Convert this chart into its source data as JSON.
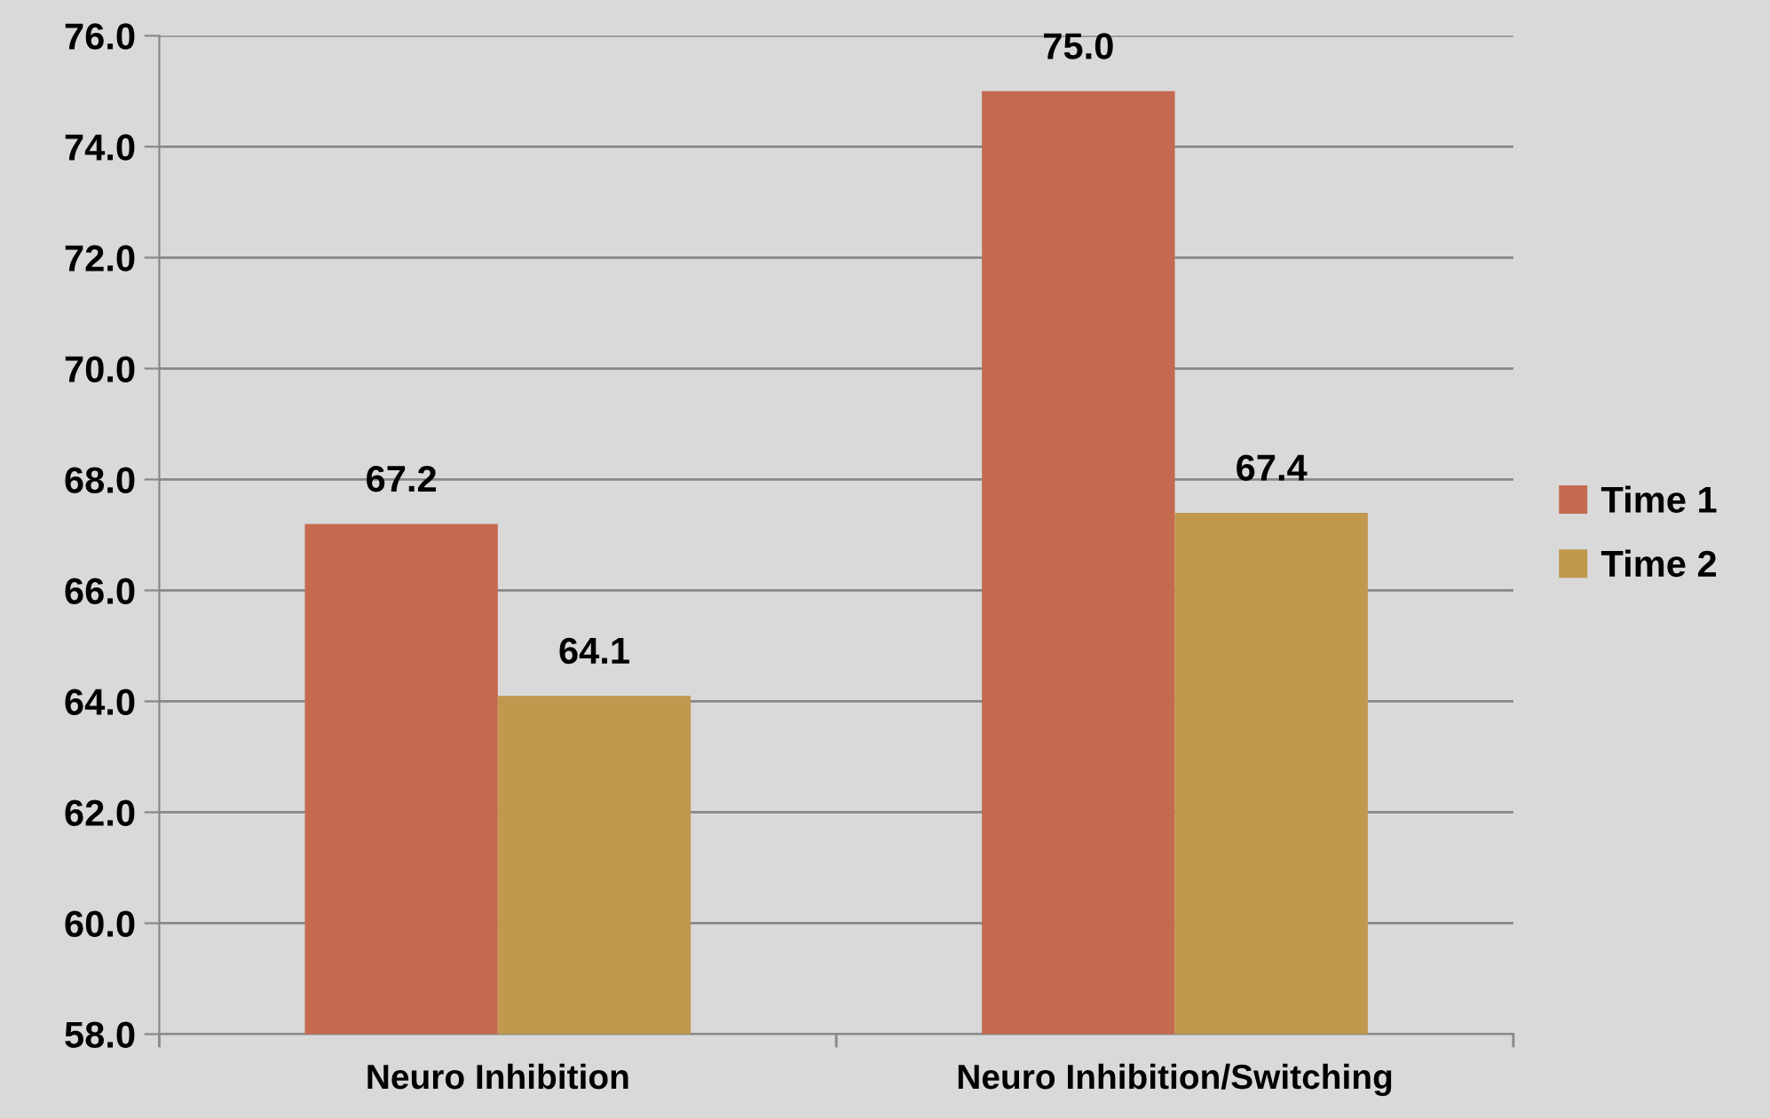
{
  "chart_data": {
    "type": "bar",
    "categories": [
      "Neuro Inhibition",
      "Neuro Inhibition/Switching"
    ],
    "series": [
      {
        "name": "Time 1",
        "color": "#c5694f",
        "values": [
          67.2,
          75.0
        ],
        "value_labels": [
          "67.2",
          "75.0"
        ]
      },
      {
        "name": "Time 2",
        "color": "#c0984e",
        "values": [
          64.1,
          67.4
        ],
        "value_labels": [
          "64.1",
          "67.4"
        ]
      }
    ],
    "ylim": [
      58,
      76
    ],
    "yticks": [
      {
        "value": 58,
        "label": "58.0"
      },
      {
        "value": 60,
        "label": "60.0"
      },
      {
        "value": 62,
        "label": "62.0"
      },
      {
        "value": 64,
        "label": "64.0"
      },
      {
        "value": 66,
        "label": "66.0"
      },
      {
        "value": 68,
        "label": "68.0"
      },
      {
        "value": 70,
        "label": "70.0"
      },
      {
        "value": 72,
        "label": "72.0"
      },
      {
        "value": 74,
        "label": "74.0"
      },
      {
        "value": 76,
        "label": "76.0"
      }
    ],
    "grid": "y",
    "legend": "right"
  }
}
